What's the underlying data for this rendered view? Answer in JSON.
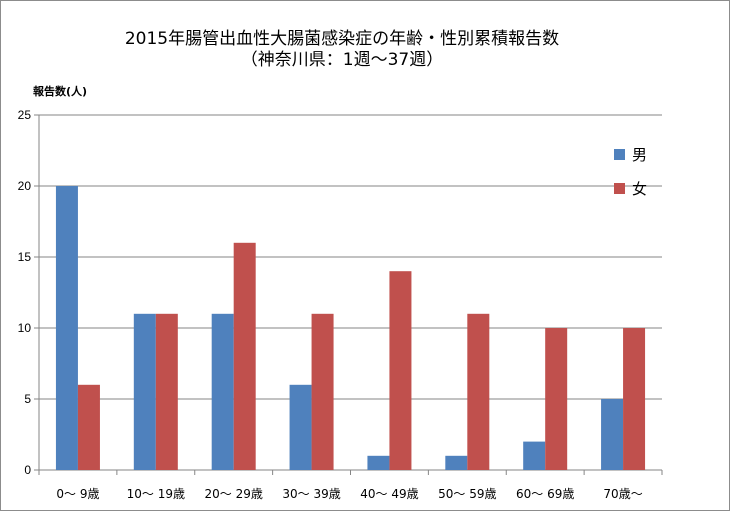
{
  "chart_data": {
    "type": "bar",
    "title": "2015年腸管出血性大腸菌感染症の年齢・性別累積報告数",
    "subtitle": "（神奈川県：1週～37週）",
    "xlabel": "",
    "ylabel": "報告数(人)",
    "ylim": [
      0,
      25
    ],
    "yticks": [
      "0",
      "5",
      "10",
      "15",
      "20",
      "25"
    ],
    "grid": true,
    "legend_position": "right",
    "categories": [
      "0～ 9歳",
      "10～ 19歳",
      "20～ 29歳",
      "30～ 39歳",
      "40～ 49歳",
      "50～ 59歳",
      "60～ 69歳",
      "70歳～"
    ],
    "series": [
      {
        "name": "男",
        "color": "#4f81bd",
        "values": [
          20,
          11,
          11,
          6,
          1,
          1,
          2,
          5
        ]
      },
      {
        "name": "女",
        "color": "#c0504d",
        "values": [
          6,
          11,
          16,
          11,
          14,
          11,
          10,
          10
        ]
      }
    ]
  }
}
